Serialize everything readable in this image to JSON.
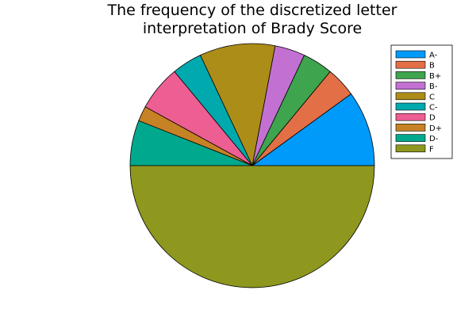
{
  "chart_data": {
    "type": "pie",
    "title_lines": [
      "The frequency of the discretized letter",
      "interpretation of Brady Score"
    ],
    "legend_position": "top-right",
    "slices": [
      {
        "label": "A-",
        "value": 10,
        "color": "#009AFA"
      },
      {
        "label": "B",
        "value": 4,
        "color": "#E36F47"
      },
      {
        "label": "B+",
        "value": 4,
        "color": "#3EA44E"
      },
      {
        "label": "B-",
        "value": 4,
        "color": "#C271D2"
      },
      {
        "label": "C",
        "value": 10,
        "color": "#AC8D18"
      },
      {
        "label": "C-",
        "value": 4,
        "color": "#00A9AD"
      },
      {
        "label": "D",
        "value": 6,
        "color": "#ED5E93"
      },
      {
        "label": "D+",
        "value": 2,
        "color": "#C68225"
      },
      {
        "label": "D-",
        "value": 6,
        "color": "#00A98D"
      },
      {
        "label": "F",
        "value": 50,
        "color": "#8E971E"
      }
    ]
  }
}
